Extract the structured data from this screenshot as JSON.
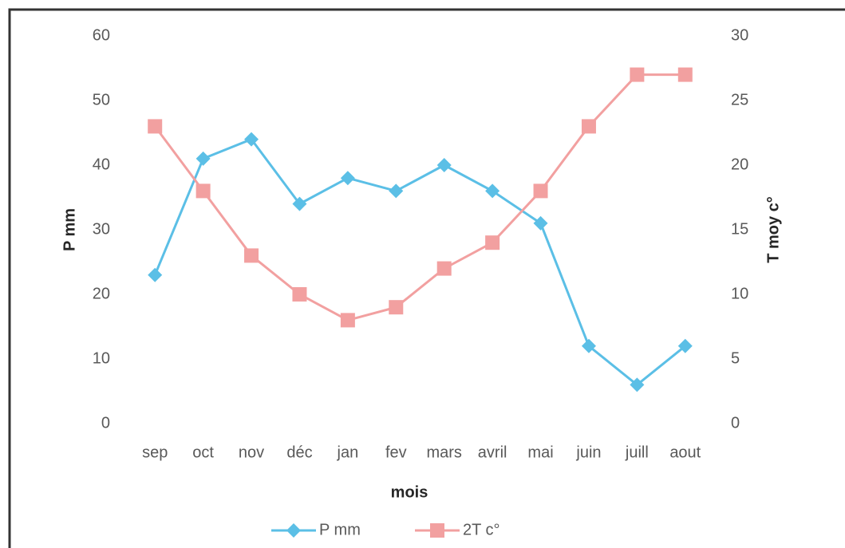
{
  "chart_data": {
    "type": "line",
    "categories": [
      "sep",
      "oct",
      "nov",
      "déc",
      "jan",
      "fev",
      "mars",
      "avril",
      "mai",
      "juin",
      "juill",
      "aout"
    ],
    "series": [
      {
        "name": "P mm",
        "color": "#5bbfe6",
        "marker": "diamond",
        "values": [
          23,
          41,
          44,
          34,
          38,
          36,
          40,
          36,
          31,
          12,
          6,
          12
        ]
      },
      {
        "name": "2T c°",
        "color": "#f2a0a0",
        "marker": "square",
        "axis": "y2",
        "values": [
          23,
          18,
          13,
          10,
          8,
          9,
          12,
          14,
          18,
          23,
          27,
          27
        ]
      }
    ],
    "x_label": "mois",
    "y_label": "P mm",
    "y2_label": "T moy c°",
    "ylim": [
      0,
      60
    ],
    "yticks": [
      0,
      10,
      20,
      30,
      40,
      50,
      60
    ],
    "y2lim": [
      0,
      30
    ],
    "y2ticks": [
      0,
      5,
      10,
      15,
      20,
      25,
      30
    ],
    "legend": "bottom"
  }
}
